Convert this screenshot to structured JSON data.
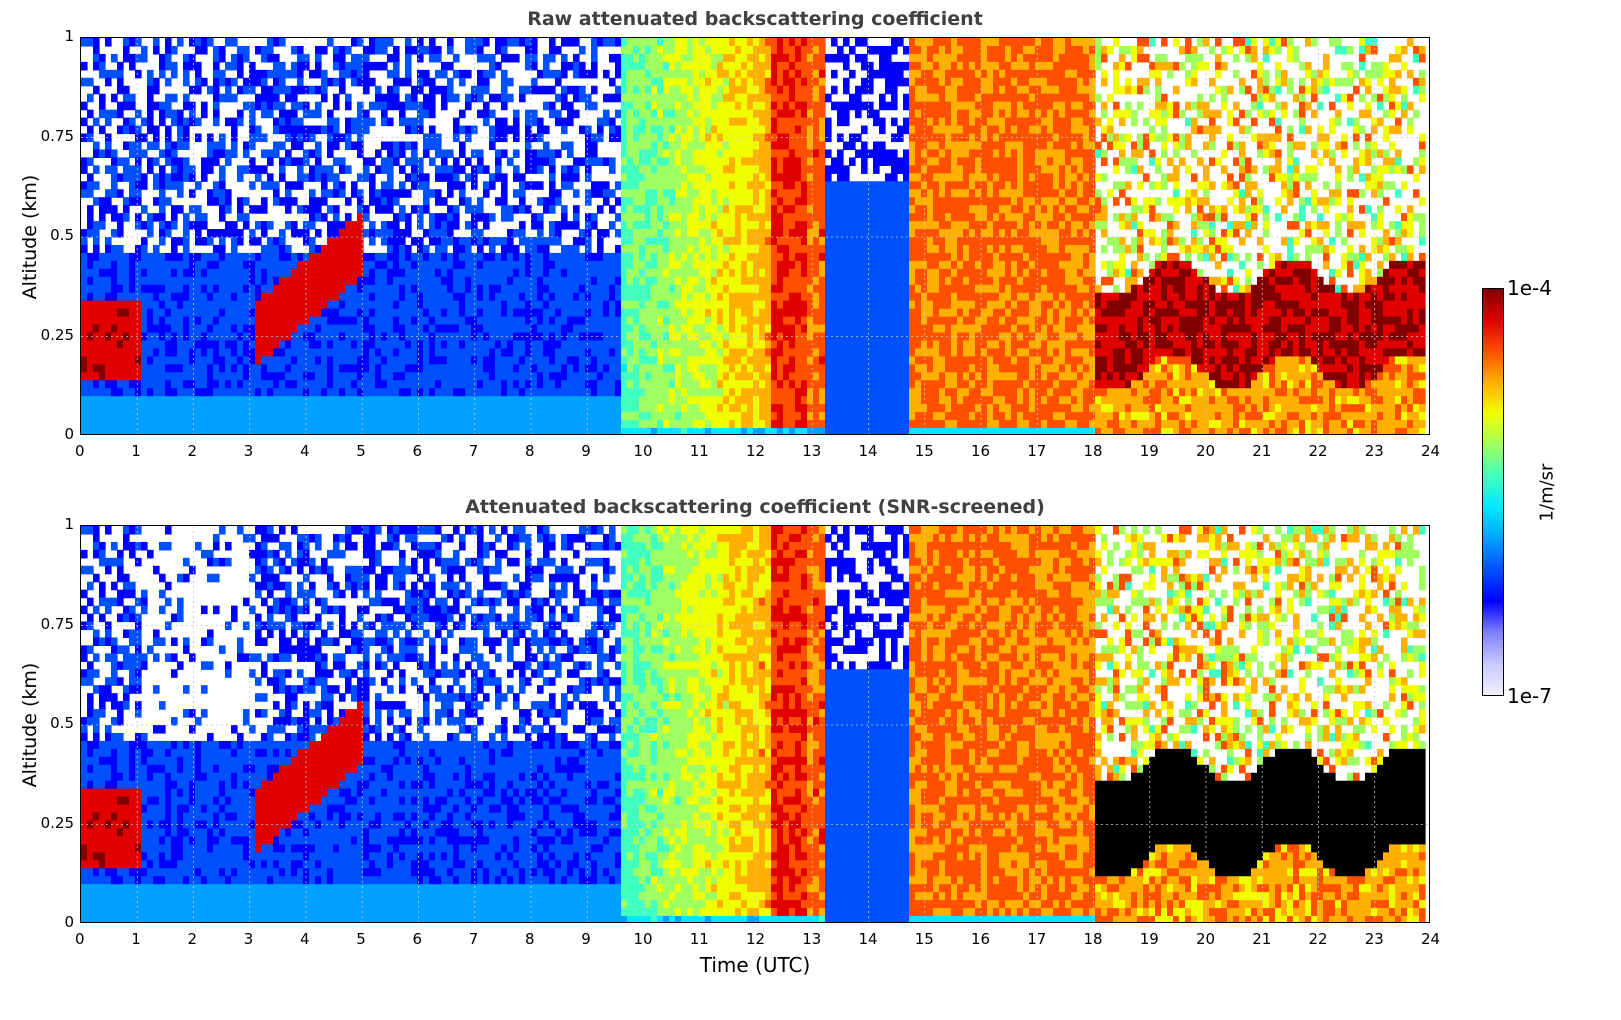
{
  "chart_data": [
    {
      "type": "heatmap",
      "title": "Raw attenuated backscattering coefficient",
      "xlabel": "",
      "ylabel": "Altitude (km)",
      "xlim": [
        0,
        24
      ],
      "ylim": [
        0,
        1
      ],
      "xticks": [
        "0",
        "1",
        "2",
        "3",
        "4",
        "5",
        "6",
        "7",
        "8",
        "9",
        "10",
        "11",
        "12",
        "13",
        "14",
        "15",
        "16",
        "17",
        "18",
        "19",
        "20",
        "21",
        "22",
        "23",
        "24"
      ],
      "yticks": [
        "0",
        "0.25",
        "0.5",
        "0.75",
        "1"
      ],
      "grid": true,
      "colormap": "jet",
      "screened": false
    },
    {
      "type": "heatmap",
      "title": "Attenuated backscattering coefficient (SNR-screened)",
      "xlabel": "Time (UTC)",
      "ylabel": "Altitude (km)",
      "xlim": [
        0,
        24
      ],
      "ylim": [
        0,
        1
      ],
      "xticks": [
        "0",
        "1",
        "2",
        "3",
        "4",
        "5",
        "6",
        "7",
        "8",
        "9",
        "10",
        "11",
        "12",
        "13",
        "14",
        "15",
        "16",
        "17",
        "18",
        "19",
        "20",
        "21",
        "22",
        "23",
        "24"
      ],
      "yticks": [
        "0",
        "0.25",
        "0.5",
        "0.75",
        "1"
      ],
      "grid": true,
      "colormap": "jet",
      "screened": true
    }
  ],
  "colorbar": {
    "max_label": "1e-4",
    "min_label": "1e-7",
    "unit": "1/m/sr",
    "colors": [
      "#f0f0ff",
      "#c8c8ff",
      "#8080ff",
      "#0000ff",
      "#0050ff",
      "#00a0ff",
      "#00e8ff",
      "#40ffc0",
      "#a0ff60",
      "#f0ff00",
      "#ffb000",
      "#ff5000",
      "#e00000",
      "#800000"
    ]
  }
}
